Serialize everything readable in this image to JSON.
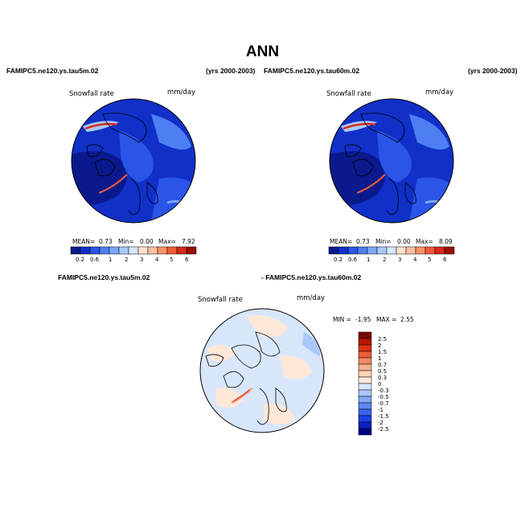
{
  "title": "ANN",
  "colors": {
    "abs_scale": [
      "#0a1a8c",
      "#1030c8",
      "#2a55e8",
      "#4d7ff2",
      "#7aa8f7",
      "#a9c9fa",
      "#d6e6fc",
      "#fde3d0",
      "#fcc0a0",
      "#f7936a",
      "#ef5a38",
      "#d52a17",
      "#991005"
    ],
    "diff_scale": [
      "#000080",
      "#0c1fc0",
      "#1a3fe6",
      "#3a62f0",
      "#5c86f4",
      "#82a7f7",
      "#abc6fa",
      "#d8e6fc",
      "#fde8d8",
      "#fcd2b8",
      "#f8b08e",
      "#f28a63",
      "#ea5d36",
      "#dc3016",
      "#b81505",
      "#7a0a00"
    ]
  },
  "panels": [
    {
      "case_label": "FAMIPC5.ne120.ys.tau5m.02",
      "years_label": "(yrs 2000-2003)",
      "field_label": "Snowfall rate",
      "units": "mm/day",
      "stats": {
        "mean_label": "MEAN=",
        "mean": "0.73",
        "min_label": "Min=",
        "min": "0.00",
        "max_label": "Max=",
        "max": "7.92"
      }
    },
    {
      "case_label": "FAMIPC5.ne120.ys.tau60m.02",
      "years_label": "(yrs 2000-2003)",
      "field_label": "Snowfall rate",
      "units": "mm/day",
      "stats": {
        "mean_label": "MEAN=",
        "mean": "0.73",
        "min_label": "Min=",
        "min": "0.00",
        "max_label": "Max=",
        "max": "8.09"
      }
    }
  ],
  "colorbar_ticks": [
    "0.2",
    "0.6",
    "1",
    "2",
    "3",
    "4",
    "5",
    "6"
  ],
  "diff_panel": {
    "case_a": "FAMIPC5.ne120.ys.tau5m.02",
    "case_b": "- FAMIPC5.ne120.ys.tau60m.02",
    "field_label": "Snowfall rate",
    "units": "mm/day",
    "min_label": "MIN =",
    "min": "-1.95",
    "max_label": "MAX =",
    "max": "2.55",
    "legend_labels": [
      "2.5",
      "2",
      "1.5",
      "1",
      "0.7",
      "0.5",
      "0.3",
      "0",
      "-0.3",
      "-0.5",
      "-0.7",
      "-1",
      "-1.5",
      "-2",
      "-2.5"
    ]
  }
}
